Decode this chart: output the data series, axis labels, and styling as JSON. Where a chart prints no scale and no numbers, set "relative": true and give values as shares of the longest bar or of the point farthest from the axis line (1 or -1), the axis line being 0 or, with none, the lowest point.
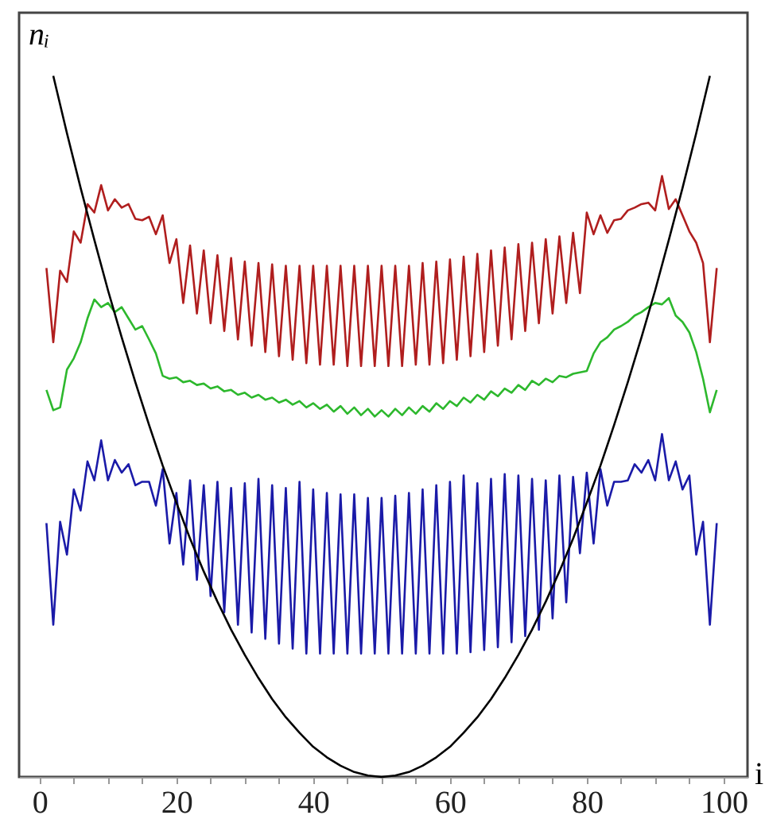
{
  "chart_data": {
    "type": "line",
    "relative": true,
    "xlabel": "i",
    "ylabel": "nᵢ",
    "xlim": [
      -3,
      103.5
    ],
    "xticks": [
      0,
      {
        "value": 5,
        "label": null
      },
      {
        "value": 10,
        "label": null
      },
      {
        "value": 15,
        "label": null
      },
      20,
      {
        "value": 25,
        "label": null
      },
      {
        "value": 30,
        "label": null
      },
      {
        "value": 35,
        "label": null
      },
      40,
      {
        "value": 45,
        "label": null
      },
      {
        "value": 50,
        "label": null
      },
      {
        "value": 55,
        "label": null
      },
      60,
      {
        "value": 65,
        "label": null
      },
      {
        "value": 70,
        "label": null
      },
      {
        "value": 75,
        "label": null
      },
      80,
      {
        "value": 85,
        "label": null
      },
      {
        "value": 90,
        "label": null
      },
      {
        "value": 95,
        "label": null
      },
      100
    ],
    "x": [
      1,
      2,
      3,
      4,
      5,
      6,
      7,
      8,
      9,
      10,
      11,
      12,
      13,
      14,
      15,
      16,
      17,
      18,
      19,
      20,
      21,
      22,
      23,
      24,
      25,
      26,
      27,
      28,
      29,
      30,
      31,
      32,
      33,
      34,
      35,
      36,
      37,
      38,
      39,
      40,
      41,
      42,
      43,
      44,
      45,
      46,
      47,
      48,
      49,
      50,
      51,
      52,
      53,
      54,
      55,
      56,
      57,
      58,
      59,
      60,
      61,
      62,
      63,
      64,
      65,
      66,
      67,
      68,
      69,
      70,
      71,
      72,
      73,
      74,
      75,
      76,
      77,
      78,
      79,
      80,
      81,
      82,
      83,
      84,
      85,
      86,
      87,
      88,
      89,
      90,
      91,
      92,
      93,
      94,
      95,
      96,
      97,
      98,
      99
    ],
    "series": [
      {
        "color": "#b01e1e",
        "values": [
          0.726,
          0.62,
          0.722,
          0.706,
          0.778,
          0.762,
          0.817,
          0.805,
          0.844,
          0.808,
          0.824,
          0.812,
          0.817,
          0.796,
          0.794,
          0.799,
          0.774,
          0.801,
          0.733,
          0.767,
          0.676,
          0.758,
          0.661,
          0.751,
          0.647,
          0.744,
          0.636,
          0.74,
          0.624,
          0.735,
          0.615,
          0.733,
          0.606,
          0.731,
          0.6,
          0.729,
          0.595,
          0.729,
          0.59,
          0.729,
          0.588,
          0.729,
          0.588,
          0.729,
          0.586,
          0.729,
          0.586,
          0.729,
          0.586,
          0.729,
          0.586,
          0.729,
          0.586,
          0.729,
          0.588,
          0.733,
          0.588,
          0.735,
          0.59,
          0.738,
          0.595,
          0.742,
          0.6,
          0.746,
          0.606,
          0.751,
          0.615,
          0.755,
          0.624,
          0.76,
          0.636,
          0.762,
          0.647,
          0.767,
          0.661,
          0.771,
          0.676,
          0.776,
          0.69,
          0.805,
          0.774,
          0.801,
          0.776,
          0.794,
          0.796,
          0.808,
          0.812,
          0.817,
          0.819,
          0.808,
          0.857,
          0.81,
          0.824,
          0.801,
          0.778,
          0.762,
          0.733,
          0.62,
          0.726
        ]
      },
      {
        "color": "#2db82d",
        "values": [
          0.552,
          0.523,
          0.527,
          0.581,
          0.597,
          0.62,
          0.654,
          0.681,
          0.67,
          0.676,
          0.663,
          0.67,
          0.654,
          0.638,
          0.643,
          0.624,
          0.604,
          0.572,
          0.568,
          0.57,
          0.563,
          0.565,
          0.559,
          0.561,
          0.554,
          0.557,
          0.55,
          0.552,
          0.545,
          0.548,
          0.541,
          0.545,
          0.538,
          0.541,
          0.534,
          0.538,
          0.531,
          0.536,
          0.527,
          0.533,
          0.525,
          0.531,
          0.521,
          0.529,
          0.518,
          0.527,
          0.516,
          0.525,
          0.514,
          0.523,
          0.514,
          0.525,
          0.516,
          0.527,
          0.518,
          0.529,
          0.521,
          0.533,
          0.525,
          0.536,
          0.529,
          0.541,
          0.534,
          0.545,
          0.538,
          0.55,
          0.543,
          0.554,
          0.548,
          0.559,
          0.552,
          0.565,
          0.559,
          0.568,
          0.563,
          0.572,
          0.57,
          0.575,
          0.577,
          0.579,
          0.604,
          0.62,
          0.627,
          0.638,
          0.643,
          0.649,
          0.658,
          0.663,
          0.67,
          0.676,
          0.674,
          0.683,
          0.658,
          0.649,
          0.634,
          0.606,
          0.568,
          0.52,
          0.552
        ]
      },
      {
        "color": "#1a1aa8",
        "values": [
          0.362,
          0.217,
          0.364,
          0.317,
          0.41,
          0.38,
          0.45,
          0.423,
          0.48,
          0.423,
          0.452,
          0.434,
          0.446,
          0.416,
          0.421,
          0.421,
          0.387,
          0.439,
          0.333,
          0.405,
          0.303,
          0.423,
          0.281,
          0.416,
          0.258,
          0.421,
          0.235,
          0.412,
          0.217,
          0.419,
          0.206,
          0.425,
          0.197,
          0.416,
          0.19,
          0.412,
          0.183,
          0.421,
          0.176,
          0.41,
          0.176,
          0.405,
          0.176,
          0.403,
          0.176,
          0.403,
          0.176,
          0.398,
          0.176,
          0.398,
          0.176,
          0.401,
          0.176,
          0.405,
          0.176,
          0.41,
          0.176,
          0.416,
          0.176,
          0.421,
          0.176,
          0.43,
          0.178,
          0.419,
          0.181,
          0.425,
          0.185,
          0.432,
          0.192,
          0.43,
          0.201,
          0.425,
          0.21,
          0.423,
          0.226,
          0.43,
          0.249,
          0.428,
          0.319,
          0.434,
          0.333,
          0.439,
          0.387,
          0.421,
          0.421,
          0.423,
          0.446,
          0.434,
          0.452,
          0.423,
          0.489,
          0.423,
          0.45,
          0.41,
          0.43,
          0.317,
          0.364,
          0.217,
          0.362
        ]
      },
      {
        "color": "#000000",
        "x": [
          2,
          4,
          6,
          8,
          10,
          12,
          14,
          16,
          18,
          20,
          22,
          24,
          26,
          28,
          30,
          32,
          34,
          36,
          38,
          40,
          42,
          44,
          46,
          48,
          50,
          52,
          54,
          56,
          58,
          60,
          62,
          64,
          66,
          68,
          70,
          72,
          74,
          76,
          78,
          80,
          82,
          84,
          86,
          88,
          90,
          92,
          94,
          96,
          98
        ],
        "values": [
          1,
          0.918,
          0.84,
          0.766,
          0.694,
          0.627,
          0.563,
          0.502,
          0.444,
          0.391,
          0.34,
          0.293,
          0.25,
          0.21,
          0.174,
          0.141,
          0.111,
          0.085,
          0.063,
          0.043,
          0.028,
          0.016,
          0.007,
          0.002,
          0,
          0.002,
          0.007,
          0.016,
          0.028,
          0.043,
          0.063,
          0.085,
          0.111,
          0.141,
          0.174,
          0.21,
          0.25,
          0.293,
          0.34,
          0.391,
          0.444,
          0.502,
          0.563,
          0.627,
          0.694,
          0.766,
          0.84,
          0.918,
          1
        ]
      }
    ]
  }
}
